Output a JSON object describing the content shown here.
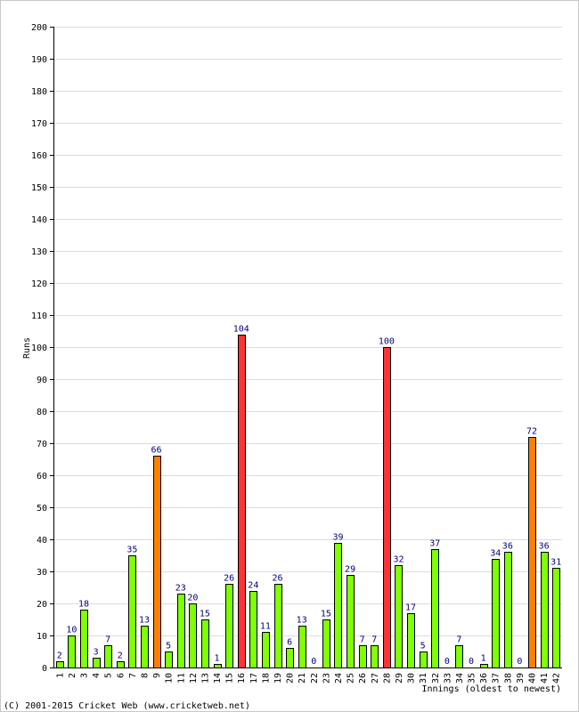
{
  "chart_data": {
    "type": "bar",
    "xlabel": "Innings (oldest to newest)",
    "ylabel": "Runs",
    "ylim": [
      0,
      200
    ],
    "ytick_step": 10,
    "grid": true,
    "categories": [
      "1",
      "2",
      "3",
      "4",
      "5",
      "6",
      "7",
      "8",
      "9",
      "10",
      "11",
      "12",
      "13",
      "14",
      "15",
      "16",
      "17",
      "18",
      "19",
      "20",
      "21",
      "22",
      "23",
      "24",
      "25",
      "26",
      "27",
      "28",
      "29",
      "30",
      "31",
      "32",
      "33",
      "34",
      "35",
      "36",
      "37",
      "38",
      "39",
      "40",
      "41",
      "42"
    ],
    "values": [
      2,
      10,
      18,
      3,
      7,
      2,
      35,
      13,
      66,
      5,
      23,
      20,
      15,
      1,
      26,
      104,
      24,
      11,
      26,
      6,
      13,
      0,
      15,
      39,
      29,
      7,
      7,
      100,
      32,
      17,
      5,
      37,
      0,
      7,
      0,
      1,
      34,
      36,
      0,
      72,
      36,
      31
    ],
    "colors": {
      "default": "#80ff00",
      "fifty": "#ff8000",
      "hundred": "#ff3333",
      "outline": "#000000",
      "data_label": "#000080"
    }
  },
  "footer": "(C) 2001-2015 Cricket Web (www.cricketweb.net)"
}
